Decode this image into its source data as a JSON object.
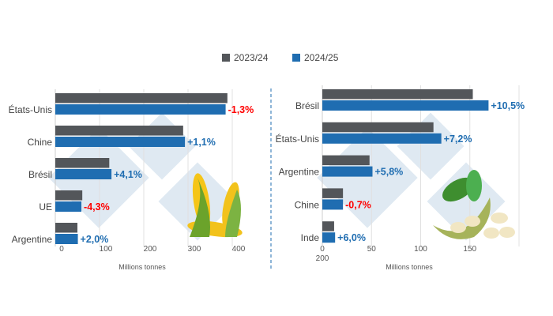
{
  "legend": {
    "items": [
      {
        "label": "2023/24",
        "color": "#53565a"
      },
      {
        "label": "2024/25",
        "color": "#1f6db1"
      }
    ]
  },
  "colors": {
    "positive": "#1f6db1",
    "negative": "#ff0000"
  },
  "chart_data": [
    {
      "type": "bar",
      "orientation": "horizontal",
      "title": "",
      "xlabel": "Millions tonnes",
      "xlim": [
        0,
        400
      ],
      "ticks": [
        "0",
        "100",
        "200",
        "300",
        "400"
      ],
      "grid": true,
      "categories": [
        "États-Unis",
        "Chine",
        "Brésil",
        "UE",
        "Argentine"
      ],
      "series": [
        {
          "name": "2023/24",
          "values": [
            389,
            289,
            122,
            61,
            50
          ]
        },
        {
          "name": "2024/25",
          "values": [
            385,
            293,
            127,
            59,
            51
          ]
        }
      ],
      "annotations": [
        "-1,3%",
        "+1,1%",
        "+4,1%",
        "-4,3%",
        "+2,0%"
      ],
      "illustration": "corn"
    },
    {
      "type": "bar",
      "orientation": "horizontal",
      "title": "",
      "xlabel": "Millions tonnes",
      "xlim": [
        0,
        200
      ],
      "ticks": [
        "0",
        "50",
        "100",
        "150",
        "200"
      ],
      "grid": true,
      "categories": [
        "Brésil",
        "États-Unis",
        "Argentine",
        "Chine",
        "Inde"
      ],
      "series": [
        {
          "name": "2023/24",
          "values": [
            153,
            113,
            48,
            21,
            12
          ]
        },
        {
          "name": "2024/25",
          "values": [
            169,
            121,
            51,
            21,
            13
          ]
        }
      ],
      "annotations": [
        "+10,5%",
        "+7,2%",
        "+5,8%",
        "-0,7%",
        "+6,0%"
      ],
      "illustration": "soybean"
    }
  ]
}
